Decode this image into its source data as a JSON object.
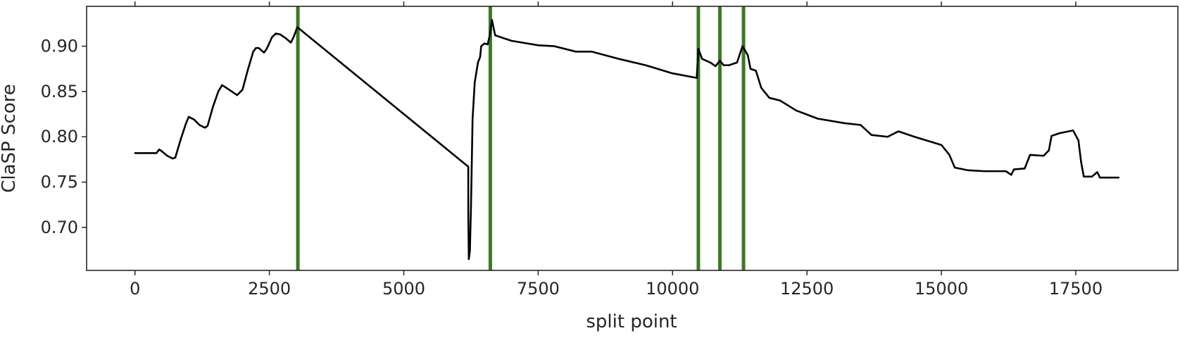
{
  "chart_data": {
    "type": "line",
    "title": "",
    "xlabel": "split point",
    "ylabel": "ClaSP Score",
    "xlim": [
      -900,
      19400
    ],
    "ylim": [
      0.6525,
      0.944
    ],
    "x_ticks": [
      0,
      2500,
      5000,
      7500,
      10000,
      12500,
      15000,
      17500
    ],
    "x_tick_labels": [
      "0",
      "2500",
      "5000",
      "7500",
      "10000",
      "12500",
      "15000",
      "17500"
    ],
    "y_ticks": [
      0.7,
      0.75,
      0.8,
      0.85,
      0.9
    ],
    "y_tick_labels": [
      "0.70",
      "0.75",
      "0.80",
      "0.85",
      "0.90"
    ],
    "grid": false,
    "series": [
      {
        "color": "#000000",
        "points": [
          [
            0,
            0.782
          ],
          [
            200,
            0.782
          ],
          [
            400,
            0.782
          ],
          [
            450,
            0.786
          ],
          [
            500,
            0.784
          ],
          [
            600,
            0.779
          ],
          [
            700,
            0.776
          ],
          [
            750,
            0.777
          ],
          [
            850,
            0.797
          ],
          [
            950,
            0.815
          ],
          [
            1000,
            0.822
          ],
          [
            1100,
            0.819
          ],
          [
            1200,
            0.813
          ],
          [
            1300,
            0.81
          ],
          [
            1350,
            0.812
          ],
          [
            1450,
            0.833
          ],
          [
            1550,
            0.85
          ],
          [
            1620,
            0.857
          ],
          [
            1700,
            0.854
          ],
          [
            1800,
            0.85
          ],
          [
            1900,
            0.846
          ],
          [
            2000,
            0.852
          ],
          [
            2100,
            0.874
          ],
          [
            2200,
            0.894
          ],
          [
            2250,
            0.898
          ],
          [
            2300,
            0.898
          ],
          [
            2400,
            0.893
          ],
          [
            2450,
            0.897
          ],
          [
            2550,
            0.91
          ],
          [
            2620,
            0.914
          ],
          [
            2700,
            0.913
          ],
          [
            2800,
            0.909
          ],
          [
            2900,
            0.904
          ],
          [
            2950,
            0.91
          ],
          [
            3020,
            0.921
          ],
          [
            6200,
            0.767
          ],
          [
            6200,
            0.715
          ],
          [
            6210,
            0.665
          ],
          [
            6230,
            0.674
          ],
          [
            6250,
            0.722
          ],
          [
            6280,
            0.82
          ],
          [
            6320,
            0.86
          ],
          [
            6380,
            0.882
          ],
          [
            6420,
            0.888
          ],
          [
            6440,
            0.9
          ],
          [
            6500,
            0.903
          ],
          [
            6560,
            0.902
          ],
          [
            6600,
            0.912
          ],
          [
            6640,
            0.929
          ],
          [
            6700,
            0.912
          ],
          [
            7000,
            0.906
          ],
          [
            7500,
            0.901
          ],
          [
            7800,
            0.9
          ],
          [
            8200,
            0.894
          ],
          [
            8500,
            0.894
          ],
          [
            9000,
            0.886
          ],
          [
            9500,
            0.879
          ],
          [
            10000,
            0.87
          ],
          [
            10450,
            0.865
          ],
          [
            10480,
            0.897
          ],
          [
            10550,
            0.886
          ],
          [
            10700,
            0.882
          ],
          [
            10800,
            0.878
          ],
          [
            10880,
            0.884
          ],
          [
            10950,
            0.879
          ],
          [
            11050,
            0.879
          ],
          [
            11200,
            0.882
          ],
          [
            11300,
            0.9
          ],
          [
            11400,
            0.89
          ],
          [
            11450,
            0.875
          ],
          [
            11550,
            0.873
          ],
          [
            11650,
            0.854
          ],
          [
            11800,
            0.843
          ],
          [
            12000,
            0.84
          ],
          [
            12300,
            0.829
          ],
          [
            12700,
            0.82
          ],
          [
            13200,
            0.815
          ],
          [
            13500,
            0.813
          ],
          [
            13700,
            0.802
          ],
          [
            14000,
            0.8
          ],
          [
            14200,
            0.806
          ],
          [
            14500,
            0.8
          ],
          [
            15000,
            0.791
          ],
          [
            15150,
            0.78
          ],
          [
            15250,
            0.766
          ],
          [
            15500,
            0.763
          ],
          [
            15800,
            0.762
          ],
          [
            16200,
            0.762
          ],
          [
            16300,
            0.758
          ],
          [
            16350,
            0.764
          ],
          [
            16550,
            0.765
          ],
          [
            16650,
            0.78
          ],
          [
            16900,
            0.779
          ],
          [
            17000,
            0.785
          ],
          [
            17050,
            0.801
          ],
          [
            17200,
            0.804
          ],
          [
            17450,
            0.807
          ],
          [
            17550,
            0.796
          ],
          [
            17600,
            0.772
          ],
          [
            17650,
            0.756
          ],
          [
            17800,
            0.756
          ],
          [
            17900,
            0.761
          ],
          [
            17950,
            0.755
          ],
          [
            18300,
            0.755
          ]
        ]
      }
    ],
    "vertical_markers": {
      "color": "#3b7a22",
      "x": [
        3030,
        6610,
        10480,
        10880,
        11320
      ]
    }
  }
}
